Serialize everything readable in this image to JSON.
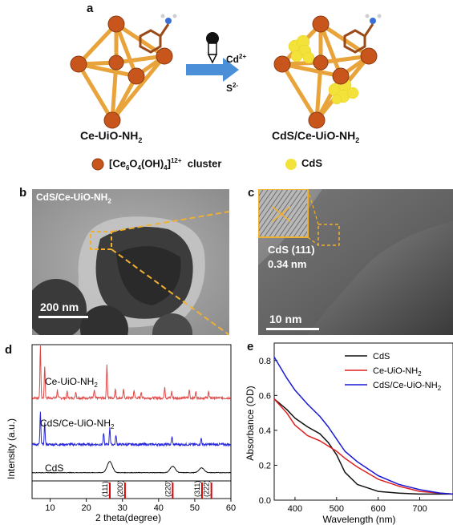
{
  "panel_a": {
    "label": "a",
    "left_material": "Ce-UiO-NH",
    "left_sub": "2",
    "right_material": "CdS/Ce-UiO-NH",
    "right_sub": "2",
    "reagent_top": "Cd",
    "reagent_top_sup": "2+",
    "reagent_bottom": "S",
    "reagent_bottom_sup": "2-",
    "legend_cluster_a": "[Ce",
    "legend_cluster_s1": "6",
    "legend_cluster_b": "O",
    "legend_cluster_s2": "4",
    "legend_cluster_c": "(OH)",
    "legend_cluster_s3": "4",
    "legend_cluster_d": "]",
    "legend_cluster_sup": "12+",
    "legend_cluster_word": "cluster",
    "legend_cds": "CdS",
    "colors": {
      "frame": "#e8a33a",
      "node": "#c8561c",
      "cds": "#f2e23a",
      "arrow": "#4a8fd8"
    }
  },
  "panel_b": {
    "label": "b",
    "title": "CdS/Ce-UiO-NH",
    "title_sub": "2",
    "scale": "200 nm"
  },
  "panel_c": {
    "label": "c",
    "lattice": "CdS (111)",
    "spacing": "0.34 nm",
    "scale": "10 nm"
  },
  "panel_d": {
    "label": "d",
    "xlabel": "2 theta(degree)",
    "ylabel": "Intensity (a.u.)",
    "xticks": [
      "10",
      "20",
      "30",
      "40",
      "50",
      "60"
    ],
    "trace_labels": {
      "ce": "Ce-UiO-NH",
      "ce_sub": "2",
      "cds_ce": "CdS/Ce-UiO-NH",
      "cds_ce_sub": "2",
      "cds": "CdS"
    },
    "reference_peaks": [
      "(111)",
      "(200)",
      "(220)",
      "(311)",
      "(222)"
    ],
    "colors": {
      "ce": "#e04848",
      "cds_ce": "#2828d8",
      "cds": "#111111",
      "ref": "#dd0000"
    }
  },
  "panel_e": {
    "label": "e",
    "xlabel": "Wavelength (nm)",
    "ylabel": "Absorbance (OD)",
    "xticks": [
      "400",
      "500",
      "600",
      "700"
    ],
    "yticks": [
      "0.0",
      "0.2",
      "0.4",
      "0.6",
      "0.8"
    ],
    "legend": [
      {
        "name": "CdS",
        "sub": "",
        "color": "#111111"
      },
      {
        "name": "Ce-UiO-NH",
        "sub": "2",
        "color": "#e02020"
      },
      {
        "name": "CdS/Ce-UiO-NH",
        "sub": "2",
        "color": "#1a1ad8"
      }
    ]
  },
  "chart_data": [
    {
      "type": "line",
      "panel": "d",
      "xlabel": "2 theta(degree)",
      "ylabel": "Intensity (a.u.)",
      "xlim": [
        5,
        60
      ],
      "series": [
        {
          "name": "Ce-UiO-NH2",
          "peaks_2theta": [
            7.3,
            8.5,
            12.0,
            14.7,
            17.1,
            22.2,
            25.7,
            28.0,
            30.3,
            33.2,
            35.2,
            41.7,
            43.6,
            48.5,
            50.3,
            53.8
          ]
        },
        {
          "name": "CdS/Ce-UiO-NH2",
          "peaks_2theta": [
            7.3,
            8.5,
            24.8,
            26.5,
            28.2,
            43.7,
            51.8
          ]
        },
        {
          "name": "CdS",
          "peaks_2theta": [
            26.5,
            43.9,
            51.9
          ]
        }
      ],
      "reference_peaks": {
        "labels": [
          "(111)",
          "(200)",
          "(220)",
          "(311)",
          "(222)"
        ],
        "x": [
          26.5,
          30.7,
          43.9,
          52.0,
          54.6
        ]
      }
    },
    {
      "type": "line",
      "panel": "e",
      "xlabel": "Wavelength (nm)",
      "ylabel": "Absorbance (OD)",
      "xlim": [
        350,
        780
      ],
      "ylim": [
        0.0,
        0.9
      ],
      "x": [
        350,
        380,
        400,
        430,
        460,
        480,
        500,
        520,
        550,
        600,
        650,
        700,
        750,
        780
      ],
      "series": [
        {
          "name": "CdS",
          "values": [
            0.58,
            0.52,
            0.47,
            0.42,
            0.38,
            0.33,
            0.26,
            0.16,
            0.09,
            0.05,
            0.04,
            0.035,
            0.035,
            0.035
          ]
        },
        {
          "name": "Ce-UiO-NH2",
          "values": [
            0.58,
            0.5,
            0.43,
            0.37,
            0.34,
            0.31,
            0.28,
            0.24,
            0.19,
            0.12,
            0.08,
            0.05,
            0.04,
            0.035
          ]
        },
        {
          "name": "CdS/Ce-UiO-NH2",
          "values": [
            0.82,
            0.7,
            0.63,
            0.55,
            0.48,
            0.42,
            0.35,
            0.28,
            0.22,
            0.14,
            0.09,
            0.06,
            0.04,
            0.035
          ]
        }
      ]
    }
  ]
}
